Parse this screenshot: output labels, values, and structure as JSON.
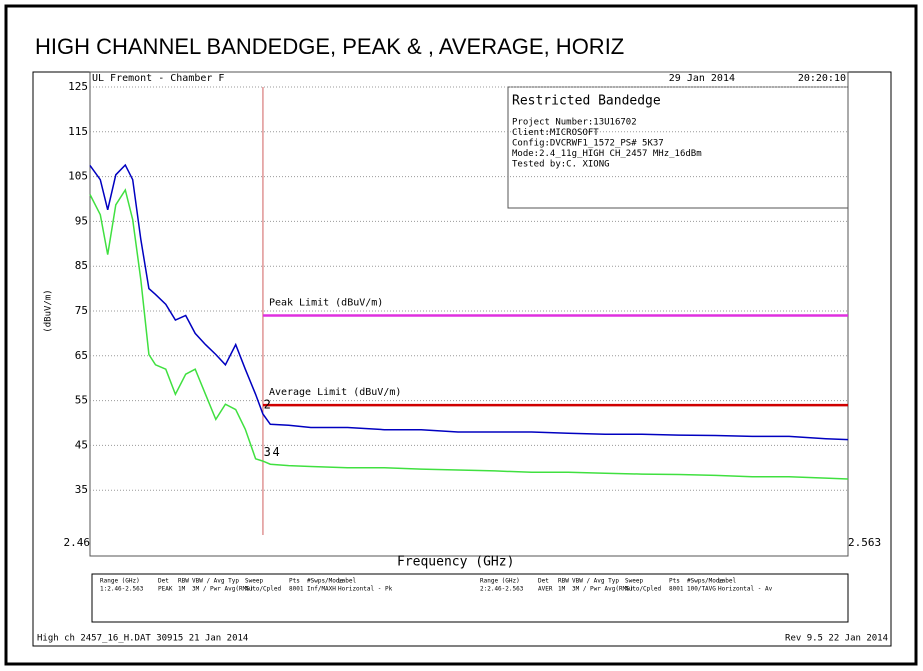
{
  "chart_data": {
    "type": "line",
    "title": "HIGH CHANNEL BANDEDGE, PEAK & , AVERAGE, HORIZ",
    "header_left": "UL Fremont - Chamber F",
    "date": "29 Jan 2014",
    "time": "20:20:10",
    "info_box": {
      "title": "Restricted Bandedge",
      "lines": [
        "Project Number:13U16702",
        "Client:MICROSOFT",
        "Config:DVCRWF1_1572_PS# 5K37",
        "Mode:2.4_11g_HIGH CH_2457 MHz_16dBm",
        "Tested by:C. XIONG"
      ]
    },
    "x_label": "Frequency (GHz)",
    "y_label": "(dBuV/m)",
    "xlim": [
      2.46,
      2.563
    ],
    "xticks": [
      2.46,
      2.563
    ],
    "ylim": [
      25,
      125
    ],
    "yticks": [
      35,
      45,
      55,
      65,
      75,
      85,
      95,
      105,
      115,
      125
    ],
    "grid": true,
    "band_edge": 2.4835,
    "limits": [
      {
        "name": "Peak Limit (dBuV/m)",
        "value": 74,
        "color": "#e030e0"
      },
      {
        "name": "Average Limit (dBuV/m)",
        "value": 54,
        "color": "#d00000"
      }
    ],
    "x": [
      2.46,
      2.4614,
      2.4624,
      2.4635,
      2.4648,
      2.4658,
      2.4669,
      2.468,
      2.4689,
      2.4703,
      2.4716,
      2.473,
      2.4743,
      2.4757,
      2.4771,
      2.4784,
      2.4798,
      2.4811,
      2.4825,
      2.4835,
      2.4845,
      2.487,
      2.49,
      2.495,
      2.5,
      2.505,
      2.51,
      2.515,
      2.52,
      2.525,
      2.53,
      2.535,
      2.54,
      2.545,
      2.55,
      2.555,
      2.56,
      2.563
    ],
    "series": [
      {
        "name": "Horizontal - Pk",
        "color": "#0000c0",
        "values": [
          107.5,
          104.3,
          97.6,
          105.4,
          107.6,
          104.3,
          91,
          80,
          78.7,
          76.5,
          73,
          74,
          70,
          67.5,
          65.3,
          63,
          67.5,
          62,
          56.4,
          52,
          49.7,
          49.5,
          49,
          49,
          48.5,
          48.5,
          48,
          48,
          48,
          47.7,
          47.5,
          47.5,
          47.3,
          47.2,
          47,
          47,
          46.5,
          46.3
        ]
      },
      {
        "name": "Horizontal - Av",
        "color": "#40e040",
        "values": [
          101,
          96.5,
          87.6,
          98.7,
          102,
          95.4,
          82,
          65.3,
          63,
          62,
          56.4,
          60.9,
          62,
          56.4,
          50.8,
          54.2,
          53,
          48.6,
          42,
          41.5,
          40.8,
          40.5,
          40.3,
          40,
          40,
          39.7,
          39.5,
          39.3,
          39,
          39,
          38.8,
          38.6,
          38.5,
          38.3,
          38,
          38,
          37.7,
          37.5
        ]
      }
    ],
    "markers": [
      {
        "label": "2",
        "x": 2.4836,
        "y": 52.5
      },
      {
        "label": "3",
        "x": 2.4836,
        "y": 41.8
      },
      {
        "label": "4",
        "x": 2.4848,
        "y": 41.8
      }
    ],
    "settings_table": {
      "columns": [
        "Range (GHz)",
        "Det",
        "RBW",
        "VBW / Avg Typ",
        "Sweep",
        "Pts",
        "#Swps/Mode",
        "Label"
      ],
      "rows": [
        [
          "1:2.46-2.563",
          "PEAK",
          "1M",
          "3M / Pwr Avg(RMS)",
          "Auto/Cpled",
          "8001",
          "Inf/MAXH",
          "Horizontal - Pk"
        ],
        [
          "2:2.46-2.563",
          "AVER",
          "1M",
          "3M / Pwr Avg(RMS)",
          "Auto/Cpled",
          "8001",
          "100/TAVG",
          "Horizontal - Av"
        ]
      ]
    },
    "footer_left": "High ch 2457_16_H.DAT 30915 21 Jan 2014",
    "footer_right": "Rev 9.5 22 Jan 2014"
  }
}
